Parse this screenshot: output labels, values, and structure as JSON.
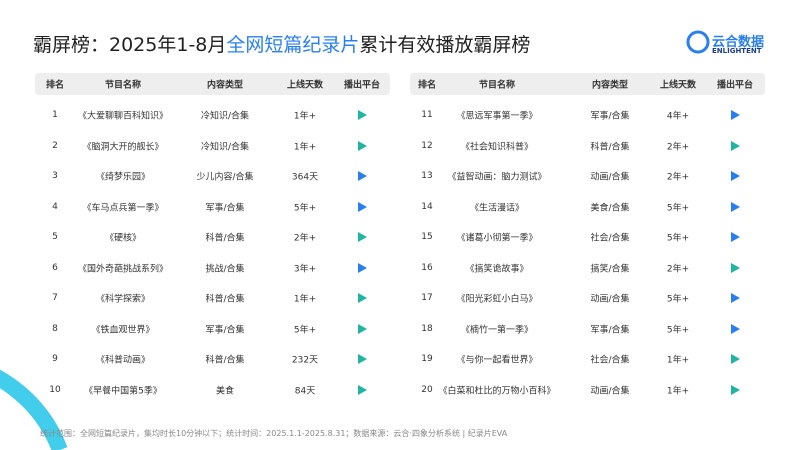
{
  "header": {
    "title_prefix": "霸屏榜：2025年1-8月",
    "title_highlight": "全网短篇纪录片",
    "title_suffix": "累计有效播放霸屏榜",
    "logo_name": "云合数据",
    "logo_brand": "ENLIGHTENT"
  },
  "tables": [
    {
      "columns": [
        "排名",
        "节目名称",
        "内容类型",
        "上线天数",
        "播出平台"
      ],
      "rows": [
        [
          "1",
          "《大爱聊聊百科知识》",
          "冷知识/合集",
          "1年+"
        ],
        [
          "2",
          "《脑洞大开的舰长》",
          "冷知识/合集",
          "1年+"
        ],
        [
          "3",
          "《绮梦乐园》",
          "少儿内容/合集",
          "364天"
        ],
        [
          "4",
          "《车马点兵第一季》",
          "军事/合集",
          "5年+"
        ],
        [
          "5",
          "《硬核》",
          "科普/合集",
          "2年+"
        ],
        [
          "6",
          "《国外奇葩挑战系列》",
          "挑战/合集",
          "3年+"
        ],
        [
          "7",
          "《科学探索》",
          "科普/合集",
          "1年+"
        ],
        [
          "8",
          "《铁血观世界》",
          "军事/合集",
          "5年+"
        ],
        [
          "9",
          "《科普动画》",
          "科普/合集",
          "232天"
        ],
        [
          "10",
          "《早餐中国第5季》",
          "美食",
          "84天"
        ]
      ],
      "platform_icons": [
        "#1fb5a0",
        "#1fb5a0",
        "#2a7ff0",
        "#2a7ff0",
        "#1fb5a0",
        "#2a7ff0",
        "#1fb5a0",
        "#1fb5a0",
        "#1fb5a0",
        "#1fb5a0"
      ]
    },
    {
      "columns": [
        "排名",
        "节目名称",
        "内容类型",
        "上线天数",
        "播出平台"
      ],
      "rows": [
        [
          "11",
          "《思远军事第一季》",
          "军事/合集",
          "4年+"
        ],
        [
          "12",
          "《社会知识科普》",
          "科普/合集",
          "2年+"
        ],
        [
          "13",
          "《益智动画：脑力测试》",
          "动画/合集",
          "2年+"
        ],
        [
          "14",
          "《生活漫话》",
          "美食/合集",
          "5年+"
        ],
        [
          "15",
          "《诸葛小彻第一季》",
          "社会/合集",
          "5年+"
        ],
        [
          "16",
          "《搞笑诡故事》",
          "搞笑/合集",
          "2年+"
        ],
        [
          "17",
          "《阳光彩虹小白马》",
          "动画/合集",
          "5年+"
        ],
        [
          "18",
          "《楠竹一第一季》",
          "军事/合集",
          "5年+"
        ],
        [
          "19",
          "《与你一起看世界》",
          "社会/合集",
          "1年+"
        ],
        [
          "20",
          "《白菜和杜比的万物小百科》",
          "动画/合集",
          "1年+"
        ]
      ],
      "platform_icons": [
        "#2a7ff0",
        "#1fb5a0",
        "#2a7ff0",
        "#2a7ff0",
        "#2a7ff0",
        "#1fb5a0",
        "#2a7ff0",
        "#2a7ff0",
        "#1fb5a0",
        "#1fb5a0"
      ]
    }
  ],
  "footer": "统计范围：全网短篇纪录片，集均时长10分钟以下；统计时间：2025.1.1-2025.8.31；数据来源：云合·四象分析系统 | 纪录片EVA"
}
